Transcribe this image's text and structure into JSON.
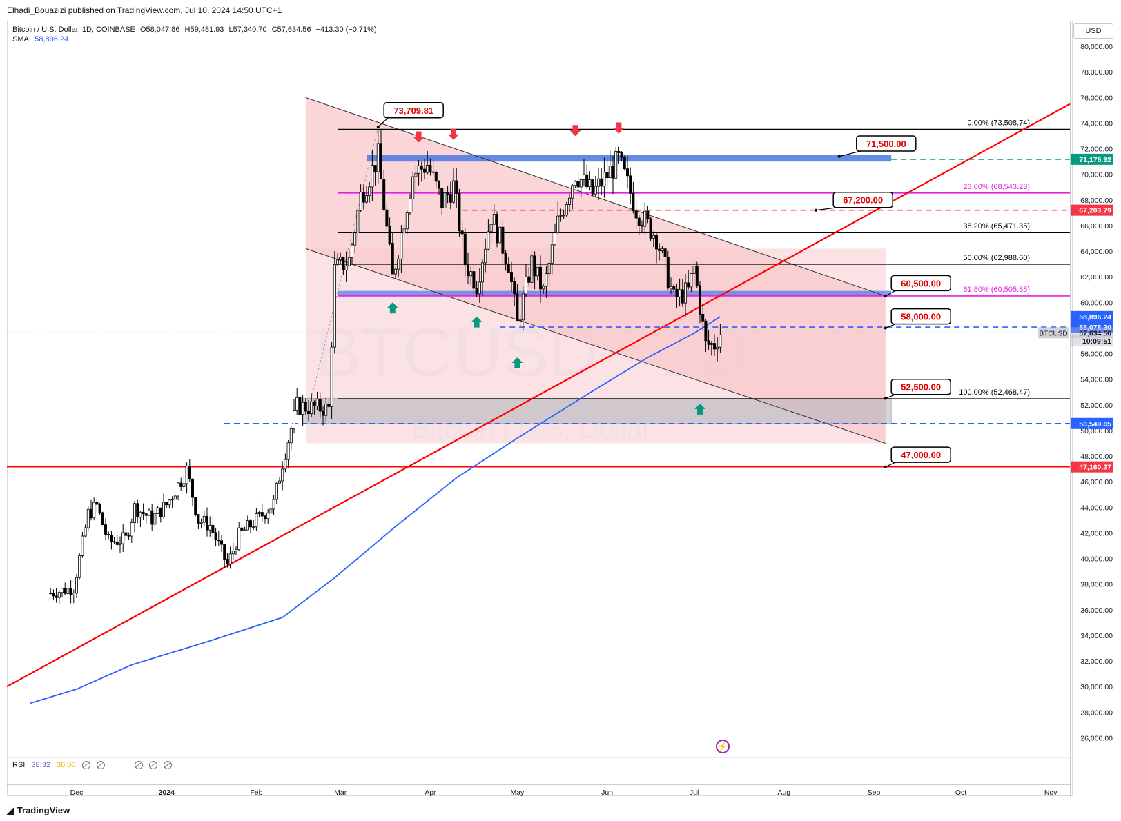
{
  "header": {
    "published_text": "Elhadi_Bouazizi published on TradingView.com, Jul 10, 2024 14:50 UTC+1"
  },
  "legend": {
    "symbol": "Bitcoin / U.S. Dollar, 1D, COINBASE",
    "open": "O58,047.86",
    "high": "H59,481.93",
    "low": "L57,340.70",
    "close": "C57,634.56",
    "change": "−413.30 (−0.71%)",
    "sma_label": "SMA",
    "sma_value": "58,896.24",
    "rsi_label": "RSI",
    "rsi_value1": "38.32",
    "rsi_value2": "36.00"
  },
  "currency": "USD",
  "watermark": {
    "symbol": "BTCUSD · 1D",
    "name": "Bitcoin / U.S. Dollar"
  },
  "branding": {
    "logo_text": "TradingView"
  },
  "colors": {
    "up": "#000000",
    "down": "#000000",
    "sma": "#2962ff",
    "trendline": "#ff0000",
    "fib_pink": "#e91ee6",
    "channel_fill": "#f8c8cc",
    "resistance_blue": "#4a78e0",
    "accent_red": "#f23645",
    "green_arrow": "#089981"
  },
  "chart_data": {
    "type": "candlestick",
    "title": "Bitcoin / U.S. Dollar, 1D, COINBASE",
    "ylim": [
      25000,
      82000
    ],
    "y_ticks": [
      "26,000.00",
      "28,000.00",
      "30,000.00",
      "32,000.00",
      "34,000.00",
      "36,000.00",
      "38,000.00",
      "40,000.00",
      "42,000.00",
      "44,000.00",
      "46,000.00",
      "48,000.00",
      "50,000.00",
      "52,000.00",
      "54,000.00",
      "56,000.00",
      "58,000.00",
      "60,000.00",
      "62,000.00",
      "64,000.00",
      "66,000.00",
      "68,000.00",
      "70,000.00",
      "72,000.00",
      "74,000.00",
      "76,000.00",
      "78,000.00",
      "80,000.00"
    ],
    "x_ticks": [
      "Dec",
      "2024",
      "Feb",
      "Mar",
      "Apr",
      "May",
      "Jun",
      "Jul",
      "Aug",
      "Sep",
      "Oct",
      "Nov"
    ],
    "price_path": [
      [
        "2023-11-22",
        37300
      ],
      [
        "2023-11-30",
        37700
      ],
      [
        "2023-12-05",
        43500
      ],
      [
        "2023-12-08",
        44100
      ],
      [
        "2023-12-12",
        41300
      ],
      [
        "2023-12-18",
        41500
      ],
      [
        "2023-12-21",
        44000
      ],
      [
        "2023-12-27",
        43100
      ],
      [
        "2024-01-01",
        44200
      ],
      [
        "2024-01-08",
        46900
      ],
      [
        "2024-01-12",
        43000
      ],
      [
        "2024-01-16",
        42600
      ],
      [
        "2024-01-22",
        39500
      ],
      [
        "2024-01-26",
        41800
      ],
      [
        "2024-02-02",
        43200
      ],
      [
        "2024-02-07",
        44300
      ],
      [
        "2024-02-10",
        47500
      ],
      [
        "2024-02-15",
        51900
      ],
      [
        "2024-02-20",
        51800
      ],
      [
        "2024-02-26",
        51700
      ],
      [
        "2024-02-28",
        62500
      ],
      [
        "2024-03-04",
        63300
      ],
      [
        "2024-03-08",
        68300
      ],
      [
        "2024-03-14",
        71400
      ],
      [
        "2024-03-19",
        61900
      ],
      [
        "2024-03-26",
        70000
      ],
      [
        "2024-03-31",
        70800
      ],
      [
        "2024-04-05",
        67800
      ],
      [
        "2024-04-09",
        69100
      ],
      [
        "2024-04-13",
        63100
      ],
      [
        "2024-04-17",
        61400
      ],
      [
        "2024-04-22",
        66800
      ],
      [
        "2024-04-28",
        63100
      ],
      [
        "2024-05-01",
        58300
      ],
      [
        "2024-05-06",
        63100
      ],
      [
        "2024-05-10",
        60800
      ],
      [
        "2024-05-15",
        66200
      ],
      [
        "2024-05-21",
        70100
      ],
      [
        "2024-05-27",
        68500
      ],
      [
        "2024-06-05",
        71100
      ],
      [
        "2024-06-11",
        67300
      ],
      [
        "2024-06-18",
        65100
      ],
      [
        "2024-06-24",
        60300
      ],
      [
        "2024-06-29",
        60900
      ],
      [
        "2024-07-01",
        62700
      ],
      [
        "2024-07-05",
        56700
      ],
      [
        "2024-07-08",
        56700
      ],
      [
        "2024-07-10",
        57634.56
      ]
    ],
    "sma": {
      "label": "SMA",
      "value": 58896.24,
      "path": [
        [
          "2023-11-15",
          28700
        ],
        [
          "2023-12-01",
          29800
        ],
        [
          "2023-12-20",
          31700
        ],
        [
          "2024-01-15",
          33500
        ],
        [
          "2024-02-10",
          35400
        ],
        [
          "2024-02-28",
          38500
        ],
        [
          "2024-03-20",
          42500
        ],
        [
          "2024-04-10",
          46300
        ],
        [
          "2024-05-01",
          49400
        ],
        [
          "2024-05-25",
          52800
        ],
        [
          "2024-06-15",
          55700
        ],
        [
          "2024-07-01",
          57600
        ],
        [
          "2024-07-10",
          58896.24
        ]
      ]
    },
    "horizontal_levels": [
      {
        "label": "0.00% (73,508.74)",
        "value": 73508.74,
        "color": "#000000"
      },
      {
        "label": "23.60% (68,543.23)",
        "value": 68543.23,
        "color": "#e91ee6"
      },
      {
        "label": "38.20% (65,471.35)",
        "value": 65471.35,
        "color": "#000000"
      },
      {
        "label": "50.00% (62,988.60)",
        "value": 62988.6,
        "color": "#000000"
      },
      {
        "label": "61.80% (60,505.85)",
        "value": 60505.85,
        "color": "#e91ee6"
      },
      {
        "label": "100.00% (52,468.47)",
        "value": 52468.47,
        "color": "#000000"
      }
    ],
    "price_labels": [
      {
        "text": "71,176.92",
        "value": 71176.92,
        "color": "#089981"
      },
      {
        "text": "67,203.79",
        "value": 67203.79,
        "color": "#f23645"
      },
      {
        "text": "58,896.24",
        "value": 58896.24,
        "color": "#2962ff"
      },
      {
        "text": "58,078.30",
        "value": 58078.3,
        "color": "#2962ff"
      },
      {
        "text": "57,634.56",
        "value": 57634.56,
        "color": "#b2b5be"
      },
      {
        "text": "10:09:51",
        "value": 57000,
        "color": "#b2b5be"
      },
      {
        "text": "50,549.65",
        "value": 50549.65,
        "color": "#2962ff"
      },
      {
        "text": "47,160.27",
        "value": 47160.27,
        "color": "#f23645"
      }
    ],
    "symbol_tag": "BTCUSD",
    "callouts": [
      {
        "text": "73,709.81",
        "value": 73709.81
      },
      {
        "text": "71,500.00",
        "value": 71500
      },
      {
        "text": "67,200.00",
        "value": 67200
      },
      {
        "text": "60,500.00",
        "value": 60500
      },
      {
        "text": "58,000.00",
        "value": 58000
      },
      {
        "text": "52,500.00",
        "value": 52500
      },
      {
        "text": "47,000.00",
        "value": 47000
      }
    ]
  }
}
